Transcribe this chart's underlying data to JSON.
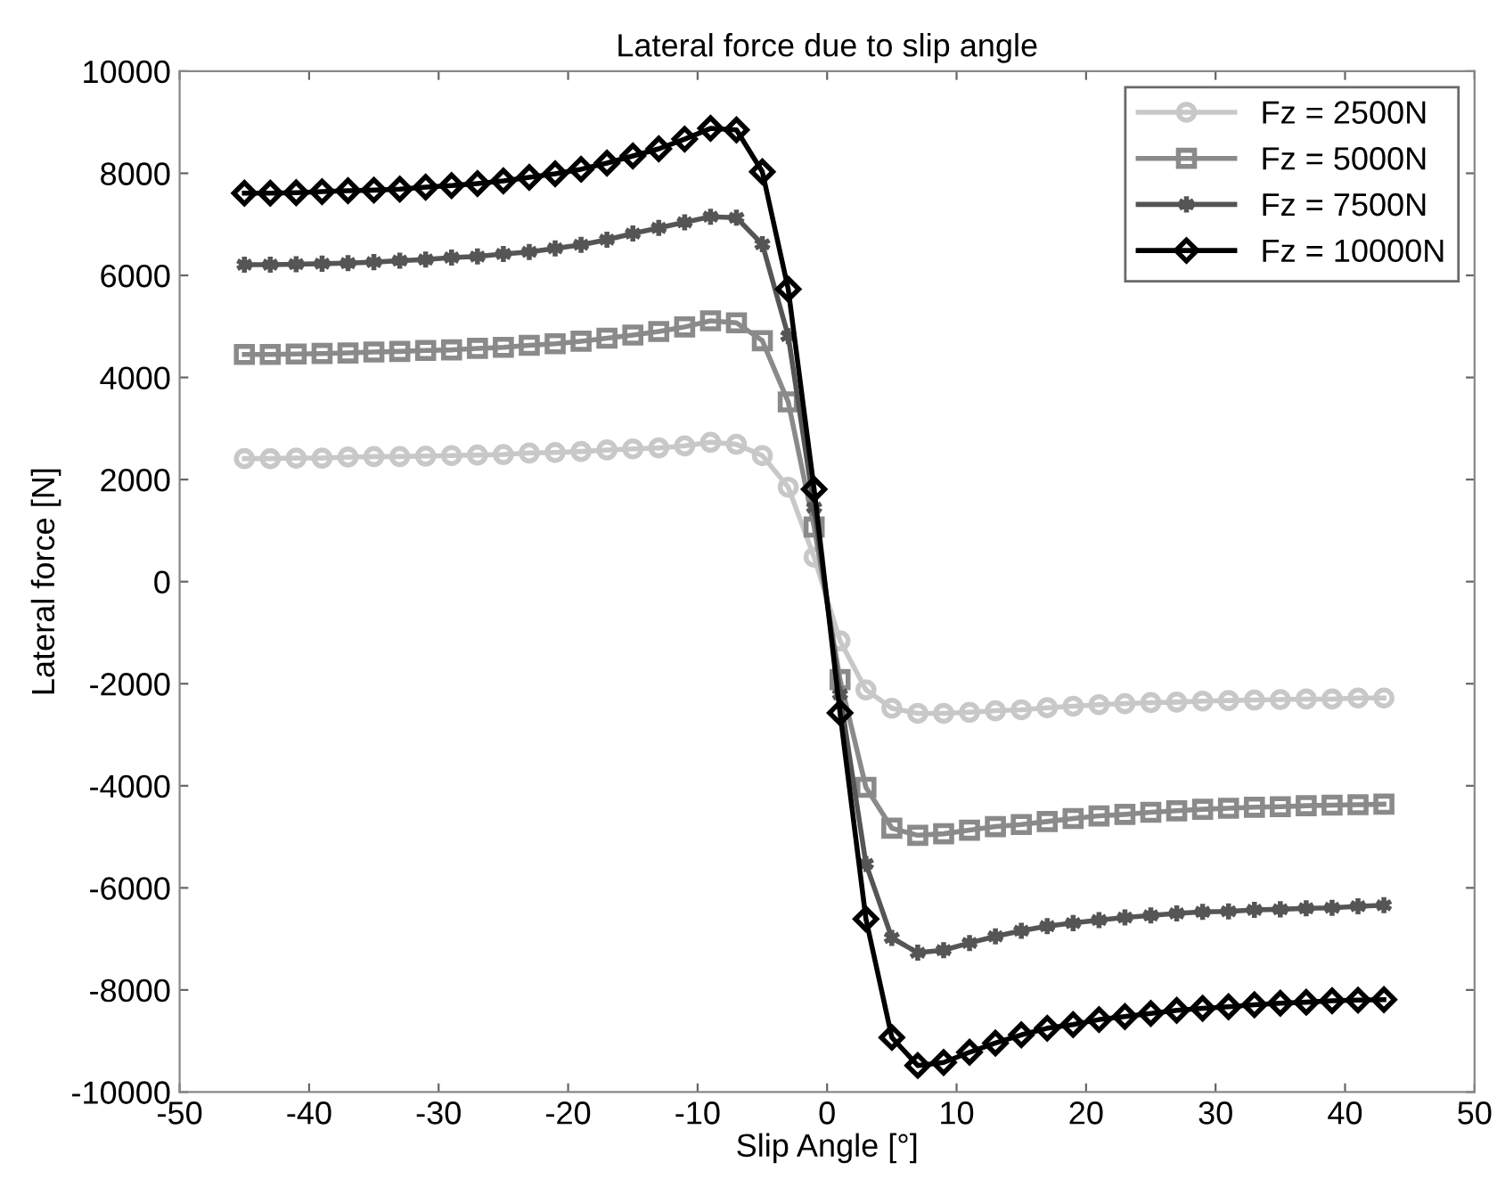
{
  "chart_data": {
    "type": "line",
    "title": "Lateral force due to slip angle",
    "xlabel": "Slip Angle [°]",
    "ylabel": "Lateral force [N]",
    "x": [
      -45,
      -43,
      -41,
      -39,
      -37,
      -35,
      -33,
      -31,
      -29,
      -27,
      -25,
      -23,
      -21,
      -19,
      -17,
      -15,
      -13,
      -11,
      -9,
      -7,
      -5,
      -3,
      -1,
      1,
      3,
      5,
      7,
      9,
      11,
      13,
      15,
      17,
      19,
      21,
      23,
      25,
      27,
      29,
      31,
      33,
      35,
      37,
      39,
      41,
      43
    ],
    "series": [
      {
        "name": "Fz = 2500N",
        "color": "#c8c8c8",
        "marker": "circle",
        "values": [
          2410,
          2410,
          2420,
          2420,
          2440,
          2450,
          2450,
          2460,
          2470,
          2480,
          2490,
          2520,
          2530,
          2550,
          2580,
          2600,
          2620,
          2660,
          2730,
          2690,
          2470,
          1850,
          480,
          -1160,
          -2120,
          -2480,
          -2580,
          -2580,
          -2560,
          -2530,
          -2510,
          -2470,
          -2440,
          -2410,
          -2390,
          -2370,
          -2360,
          -2340,
          -2330,
          -2320,
          -2310,
          -2300,
          -2300,
          -2280,
          -2280
        ]
      },
      {
        "name": "Fz = 5000N",
        "color": "#8a8a8a",
        "marker": "square",
        "values": [
          4450,
          4450,
          4460,
          4470,
          4480,
          4500,
          4510,
          4530,
          4540,
          4570,
          4590,
          4630,
          4660,
          4710,
          4770,
          4830,
          4900,
          4990,
          5110,
          5070,
          4720,
          3520,
          1070,
          -1920,
          -4030,
          -4830,
          -4970,
          -4940,
          -4870,
          -4800,
          -4760,
          -4700,
          -4640,
          -4590,
          -4560,
          -4520,
          -4490,
          -4460,
          -4440,
          -4420,
          -4410,
          -4390,
          -4380,
          -4370,
          -4360
        ]
      },
      {
        "name": "Fz = 7500N",
        "color": "#555555",
        "marker": "cross",
        "values": [
          6210,
          6210,
          6220,
          6230,
          6240,
          6260,
          6290,
          6310,
          6350,
          6370,
          6420,
          6460,
          6530,
          6600,
          6700,
          6820,
          6930,
          7040,
          7150,
          7130,
          6610,
          4810,
          1450,
          -2210,
          -5530,
          -6980,
          -7270,
          -7220,
          -7080,
          -6950,
          -6840,
          -6750,
          -6690,
          -6630,
          -6580,
          -6540,
          -6500,
          -6470,
          -6460,
          -6430,
          -6420,
          -6400,
          -6390,
          -6360,
          -6340
        ]
      },
      {
        "name": "Fz = 10000N",
        "color": "#000000",
        "marker": "diamond",
        "values": [
          7610,
          7610,
          7620,
          7640,
          7660,
          7670,
          7690,
          7730,
          7760,
          7800,
          7850,
          7920,
          7990,
          8080,
          8200,
          8340,
          8480,
          8670,
          8880,
          8850,
          8030,
          5730,
          1810,
          -2570,
          -6610,
          -8930,
          -9480,
          -9420,
          -9220,
          -9040,
          -8880,
          -8750,
          -8680,
          -8580,
          -8520,
          -8460,
          -8400,
          -8360,
          -8330,
          -8290,
          -8260,
          -8240,
          -8210,
          -8200,
          -8190
        ]
      }
    ],
    "xlim": [
      -50,
      50
    ],
    "xticks": [
      -50,
      -40,
      -30,
      -20,
      -10,
      0,
      10,
      20,
      30,
      40,
      50
    ],
    "ylim": [
      -10000,
      10000
    ],
    "yticks": [
      -10000,
      -8000,
      -6000,
      -4000,
      -2000,
      0,
      2000,
      4000,
      6000,
      8000,
      10000
    ],
    "grid": false,
    "legend": "top right",
    "line_style": "solid"
  }
}
